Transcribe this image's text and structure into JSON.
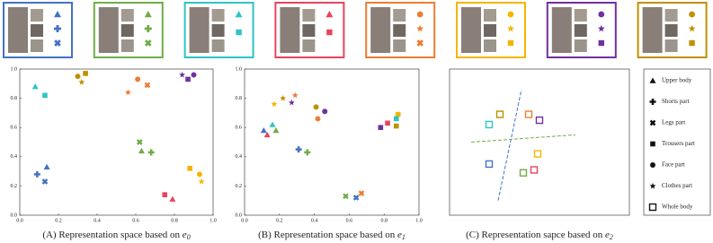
{
  "identities": [
    {
      "color": "#4472c4",
      "markers": [
        "triangle",
        "plus",
        "x"
      ]
    },
    {
      "color": "#70ad47",
      "markers": [
        "triangle",
        "plus",
        "x"
      ]
    },
    {
      "color": "#2ec4c4",
      "markers": [
        "triangle",
        "square"
      ]
    },
    {
      "color": "#e8435a",
      "markers": [
        "triangle",
        "square"
      ]
    },
    {
      "color": "#ed7d31",
      "markers": [
        "circle",
        "star",
        "x"
      ]
    },
    {
      "color": "#f2b600",
      "markers": [
        "circle",
        "star",
        "square"
      ]
    },
    {
      "color": "#7030a0",
      "markers": [
        "circle",
        "star",
        "square"
      ]
    },
    {
      "color": "#bf9000",
      "markers": [
        "circle",
        "star",
        "square"
      ]
    }
  ],
  "legend": [
    {
      "label": "Upper body",
      "marker": "triangle"
    },
    {
      "label": "Shorts part",
      "marker": "plus"
    },
    {
      "label": "Legs part",
      "marker": "x"
    },
    {
      "label": "Trousers part",
      "marker": "square"
    },
    {
      "label": "Face part",
      "marker": "circle"
    },
    {
      "label": "Clothes part",
      "marker": "star"
    },
    {
      "label": "Whole body",
      "marker": "open-square"
    }
  ],
  "chart_data": [
    {
      "type": "scatter",
      "caption": "(A) Representation space based on ",
      "symbol": "e",
      "subscript": "0",
      "xlim": [
        0,
        1
      ],
      "ylim": [
        0,
        1
      ],
      "xticks": [
        {
          "value": 0,
          "label": "0.0"
        },
        0.2,
        0.4,
        0.6,
        0.8,
        {
          "value": 1,
          "label": "1.0"
        }
      ],
      "yticks": [
        {
          "value": 0,
          "label": "0.0"
        },
        0.2,
        0.4,
        0.6,
        0.8,
        {
          "value": 1,
          "label": "1.0"
        }
      ],
      "x": [
        0.14,
        0.09,
        0.13,
        0.08,
        0.13,
        0.3,
        0.32,
        0.34,
        0.56,
        0.66,
        0.61,
        0.84,
        0.87,
        0.9,
        0.62,
        0.63,
        0.68,
        0.75,
        0.79,
        0.88,
        0.93,
        0.94
      ],
      "y": [
        0.33,
        0.28,
        0.23,
        0.88,
        0.82,
        0.95,
        0.91,
        0.97,
        0.84,
        0.89,
        0.93,
        0.96,
        0.93,
        0.96,
        0.5,
        0.44,
        0.43,
        0.14,
        0.11,
        0.32,
        0.28,
        0.23
      ],
      "colors": [
        "#4472c4",
        "#4472c4",
        "#4472c4",
        "#2ec4c4",
        "#2ec4c4",
        "#bf9000",
        "#bf9000",
        "#bf9000",
        "#ed7d31",
        "#ed7d31",
        "#ed7d31",
        "#7030a0",
        "#7030a0",
        "#7030a0",
        "#70ad47",
        "#70ad47",
        "#70ad47",
        "#e8435a",
        "#e8435a",
        "#f2b600",
        "#f2b600",
        "#f2b600"
      ],
      "markers": [
        "triangle",
        "plus",
        "x",
        "triangle",
        "square",
        "circle",
        "star",
        "square",
        "star",
        "x",
        "circle",
        "star",
        "square",
        "circle",
        "x",
        "triangle",
        "plus",
        "square",
        "triangle",
        "square",
        "circle",
        "star"
      ]
    },
    {
      "type": "scatter",
      "caption": "(B) Representation space based on ",
      "symbol": "e",
      "subscript": "1",
      "xlim": [
        0,
        1
      ],
      "ylim": [
        0,
        1
      ],
      "xticks": [
        {
          "value": 0,
          "label": "0.0"
        },
        0.2,
        0.4,
        0.6,
        0.8,
        {
          "value": 1,
          "label": "1.0"
        }
      ],
      "yticks": [
        {
          "value": 0,
          "label": "0.0"
        },
        0.2,
        0.4,
        0.6,
        0.8,
        {
          "value": 1,
          "label": "1.0"
        }
      ],
      "x": [
        0.11,
        0.31,
        0.64,
        0.13,
        0.82,
        0.78,
        0.16,
        0.18,
        0.17,
        0.88,
        0.22,
        0.41,
        0.87,
        0.29,
        0.42,
        0.67,
        0.27,
        0.46,
        0.36,
        0.58,
        0.87
      ],
      "y": [
        0.58,
        0.45,
        0.12,
        0.55,
        0.63,
        0.6,
        0.62,
        0.58,
        0.76,
        0.69,
        0.8,
        0.74,
        0.61,
        0.82,
        0.66,
        0.15,
        0.77,
        0.71,
        0.43,
        0.13,
        0.66
      ],
      "colors": [
        "#4472c4",
        "#4472c4",
        "#4472c4",
        "#e8435a",
        "#e8435a",
        "#7030a0",
        "#2ec4c4",
        "#70ad47",
        "#f2b600",
        "#f2b600",
        "#bf9000",
        "#bf9000",
        "#bf9000",
        "#ed7d31",
        "#ed7d31",
        "#ed7d31",
        "#7030a0",
        "#7030a0",
        "#70ad47",
        "#70ad47",
        "#2ec4c4"
      ],
      "markers": [
        "triangle",
        "plus",
        "x",
        "triangle",
        "square",
        "square",
        "triangle",
        "triangle",
        "star",
        "square",
        "star",
        "circle",
        "square",
        "star",
        "circle",
        "x",
        "star",
        "circle",
        "plus",
        "x",
        "square"
      ]
    },
    {
      "type": "scatter",
      "caption": "(C) Representation sapce based on ",
      "symbol": "e",
      "subscript": "2",
      "xlim": [
        0,
        1
      ],
      "ylim": [
        0,
        1
      ],
      "x": [
        0.22,
        0.22,
        0.28,
        0.44,
        0.5,
        0.49,
        0.47,
        0.41
      ],
      "y": [
        0.35,
        0.62,
        0.69,
        0.69,
        0.65,
        0.42,
        0.31,
        0.29
      ],
      "colors": [
        "#4472c4",
        "#2ec4c4",
        "#bf9000",
        "#ed7d31",
        "#7030a0",
        "#f2b600",
        "#e8435a",
        "#70ad47"
      ],
      "markers": [
        "open-square",
        "open-square",
        "open-square",
        "open-square",
        "open-square",
        "open-square",
        "open-square",
        "open-square"
      ],
      "lines": [
        {
          "color": "#4472c4",
          "x": [
            0.27,
            0.4
          ],
          "y": [
            0.1,
            0.86
          ]
        },
        {
          "color": "#70ad47",
          "x": [
            0.12,
            0.7
          ],
          "y": [
            0.5,
            0.55
          ]
        }
      ]
    }
  ]
}
